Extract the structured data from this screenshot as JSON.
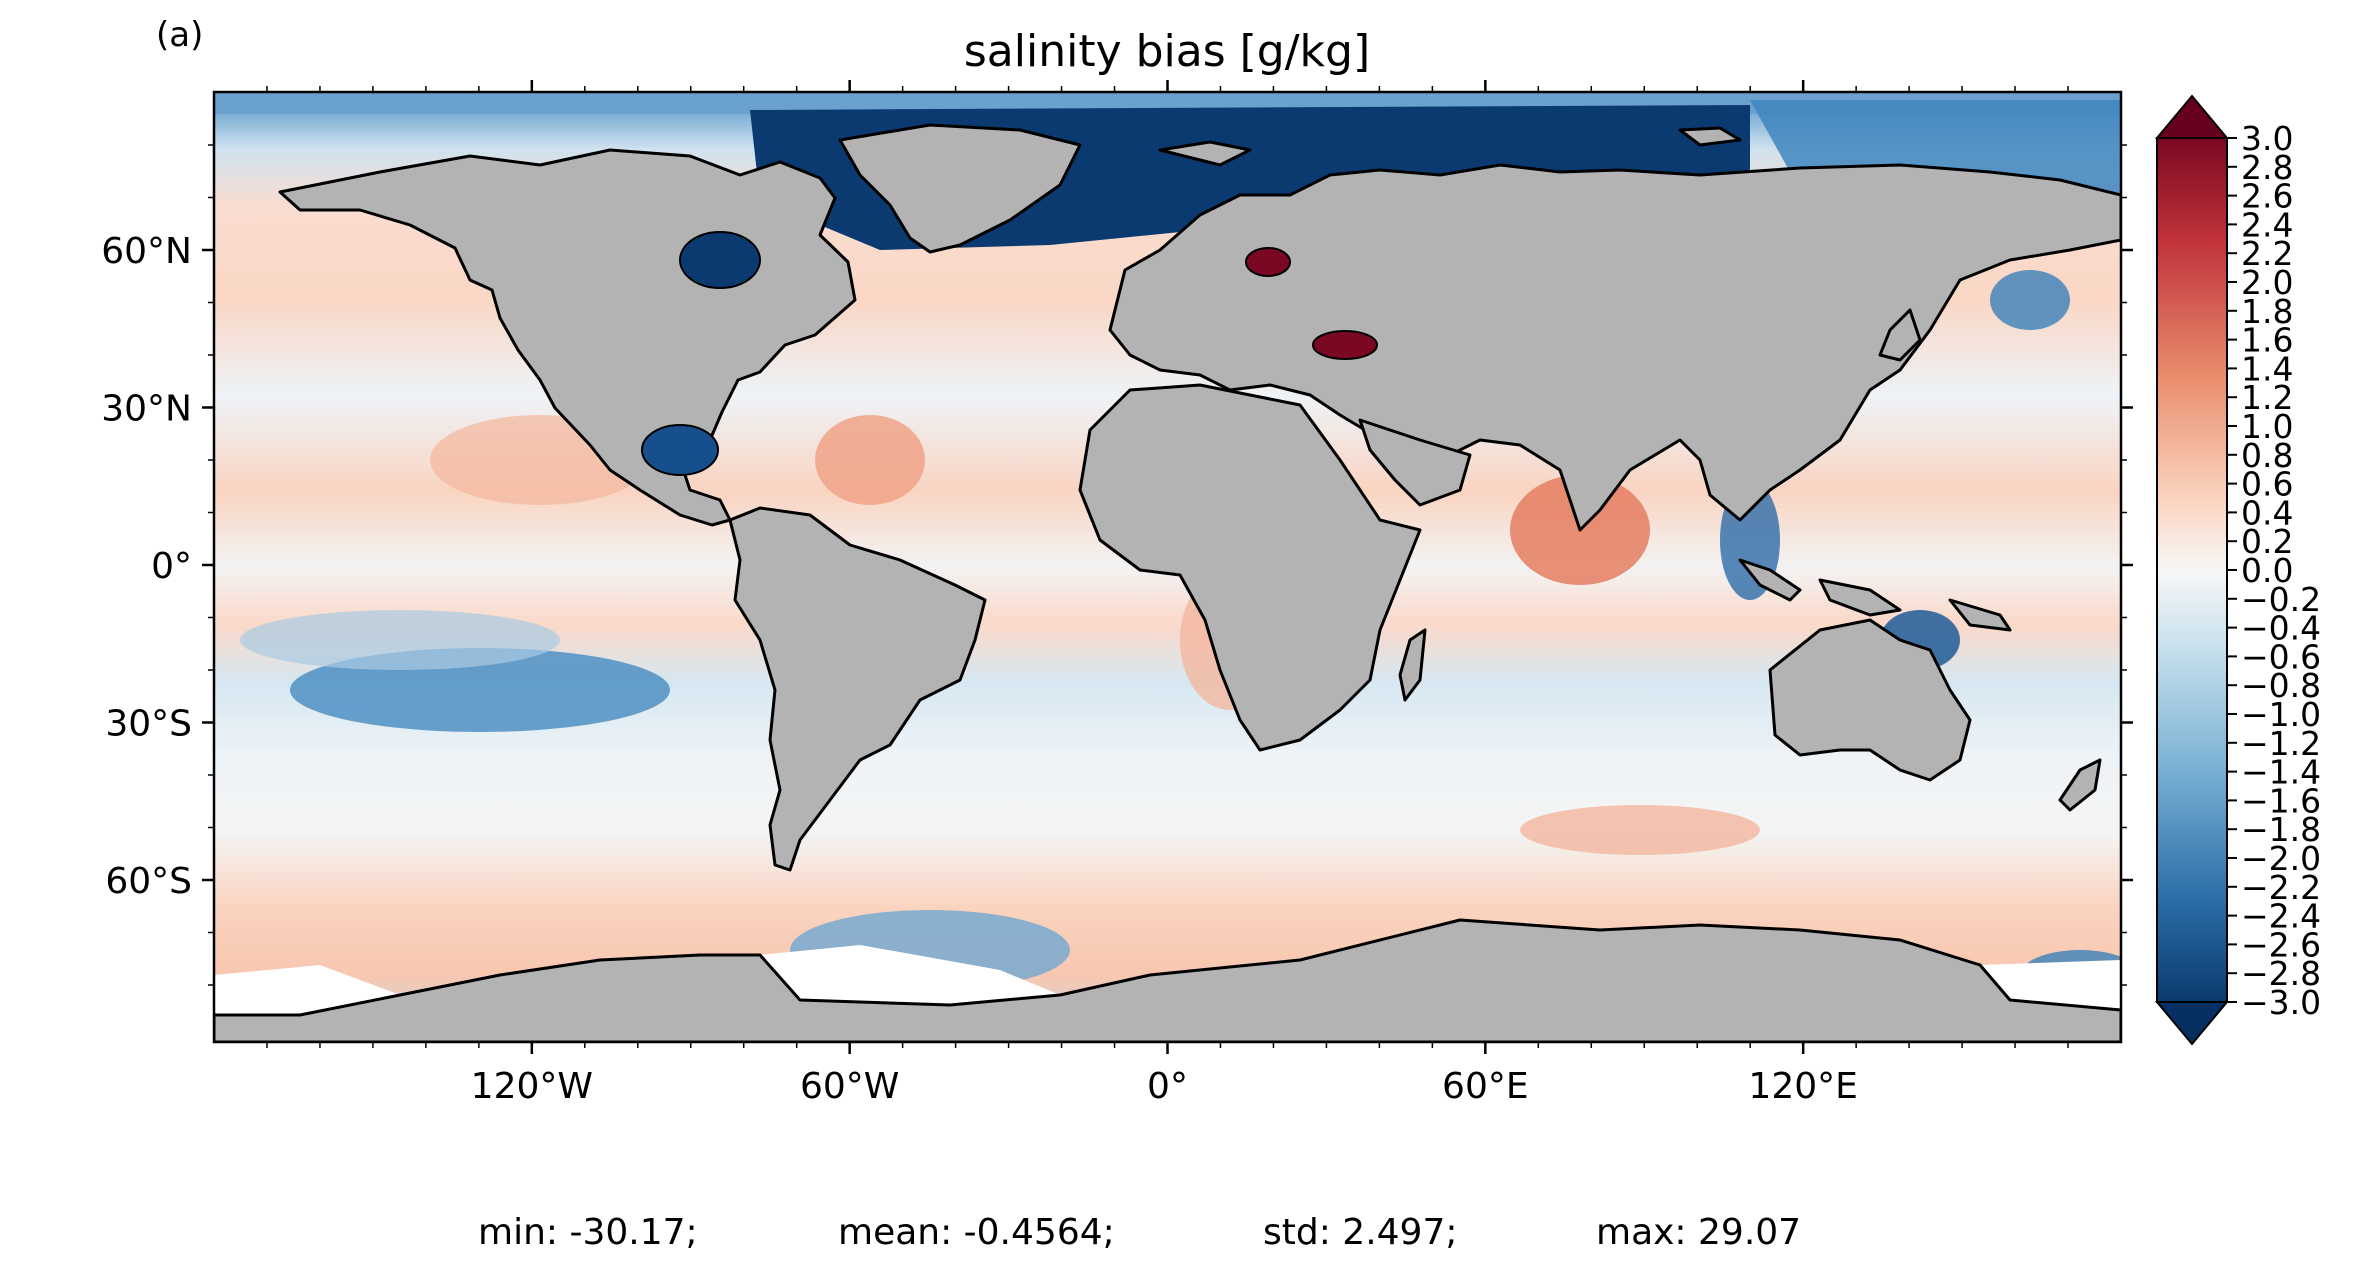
{
  "panel_label": "(a)",
  "title": "salinity bias [g/kg]",
  "lat_ticks": [
    {
      "value": 60,
      "label": "60°N"
    },
    {
      "value": 30,
      "label": "30°N"
    },
    {
      "value": 0,
      "label": "0°"
    },
    {
      "value": -30,
      "label": "30°S"
    },
    {
      "value": -60,
      "label": "60°S"
    }
  ],
  "lon_ticks": [
    {
      "value": -120,
      "label": "120°W"
    },
    {
      "value": -60,
      "label": "60°W"
    },
    {
      "value": 0,
      "label": "0°"
    },
    {
      "value": 60,
      "label": "60°E"
    },
    {
      "value": 120,
      "label": "120°E"
    }
  ],
  "colorbar": {
    "min": -3.0,
    "max": 3.0,
    "ticks": [
      "3.0",
      "2.8",
      "2.6",
      "2.4",
      "2.2",
      "2.0",
      "1.8",
      "1.6",
      "1.4",
      "1.2",
      "1.0",
      "0.8",
      "0.6",
      "0.4",
      "0.2",
      "0.0",
      "−0.2",
      "−0.4",
      "−0.6",
      "−0.8",
      "−1.0",
      "−1.2",
      "−1.4",
      "−1.6",
      "−1.8",
      "−2.0",
      "−2.2",
      "−2.4",
      "−2.6",
      "−2.8",
      "−3.0"
    ],
    "colormap": "RdBu_r",
    "extend": "both"
  },
  "stats": {
    "min": "min: -30.17;",
    "mean": "mean: -0.4564;",
    "std": "std: 2.497;",
    "max": "max: 29.07"
  },
  "colors": {
    "land": "#b3b3b3",
    "deep_red": "#67001f",
    "deep_blue": "#053061",
    "ice_white": "#ffffff"
  }
}
